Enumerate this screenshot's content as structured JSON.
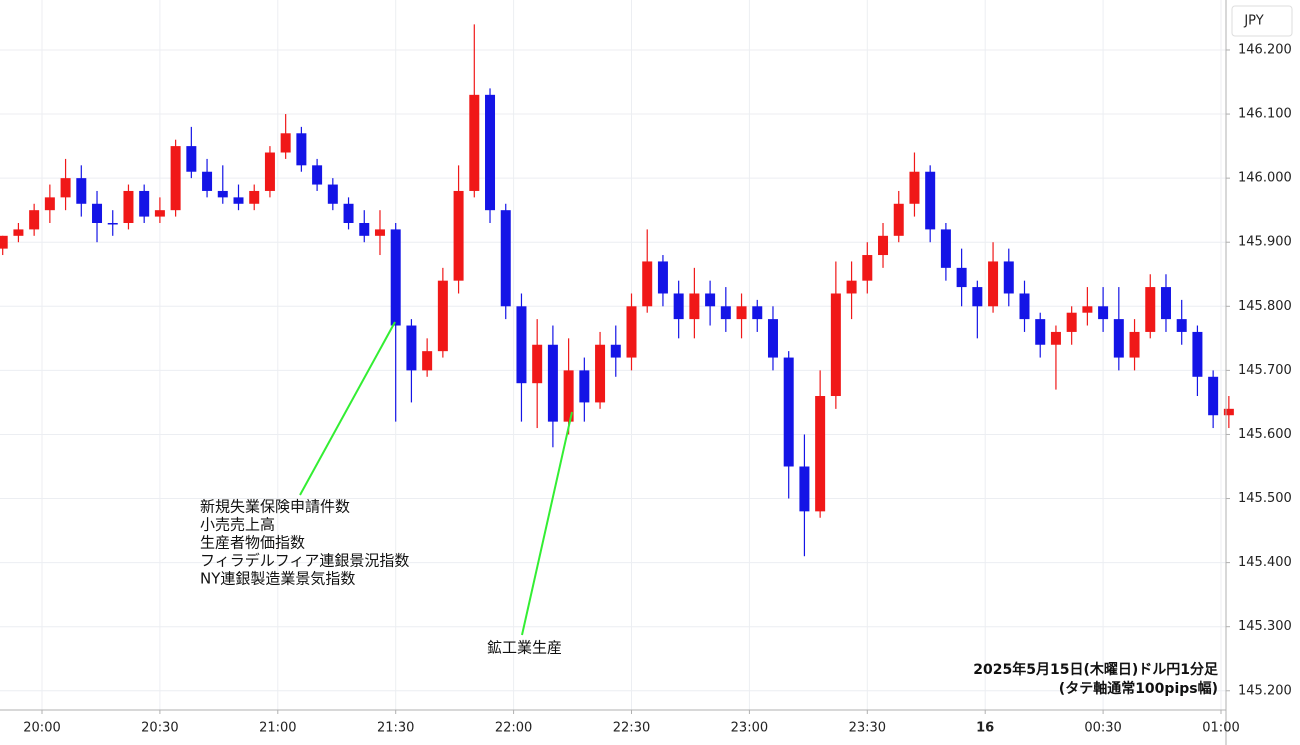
{
  "chart_data": {
    "type": "candlestick",
    "currency_label": "JPY",
    "x": [
      "19:48",
      "19:52",
      "19:56",
      "20:00",
      "20:04",
      "20:08",
      "20:12",
      "20:16",
      "20:20",
      "20:24",
      "20:28",
      "20:32",
      "20:36",
      "20:40",
      "20:44",
      "20:48",
      "20:52",
      "20:56",
      "21:00",
      "21:04",
      "21:08",
      "21:12",
      "21:16",
      "21:20",
      "21:24",
      "21:28",
      "21:32",
      "21:36",
      "21:40",
      "21:44",
      "21:48",
      "21:52",
      "21:56",
      "22:00",
      "22:04",
      "22:08",
      "22:12",
      "22:16",
      "22:20",
      "22:24",
      "22:28",
      "22:32",
      "22:36",
      "22:40",
      "22:44",
      "22:48",
      "22:52",
      "22:56",
      "23:00",
      "23:04",
      "23:08",
      "23:12",
      "23:16",
      "23:20",
      "23:24",
      "23:28",
      "23:32",
      "23:36",
      "23:40",
      "23:44",
      "23:48",
      "23:52",
      "23:56",
      "00:00",
      "00:04",
      "00:08",
      "00:12",
      "00:16",
      "00:20",
      "00:24",
      "00:28",
      "00:32",
      "00:36",
      "00:40",
      "00:44",
      "00:48",
      "00:52",
      "00:56",
      "01:00"
    ],
    "open": [
      145.89,
      145.91,
      145.92,
      145.95,
      145.97,
      146.0,
      145.96,
      145.93,
      145.93,
      145.98,
      145.94,
      145.95,
      146.05,
      146.01,
      145.98,
      145.97,
      145.96,
      145.98,
      146.04,
      146.07,
      146.02,
      145.99,
      145.96,
      145.93,
      145.91,
      145.92,
      145.77,
      145.7,
      145.73,
      145.84,
      145.98,
      146.13,
      145.95,
      145.8,
      145.68,
      145.74,
      145.62,
      145.7,
      145.65,
      145.74,
      145.72,
      145.8,
      145.87,
      145.82,
      145.78,
      145.82,
      145.8,
      145.78,
      145.8,
      145.78,
      145.72,
      145.55,
      145.48,
      145.66,
      145.82,
      145.84,
      145.88,
      145.91,
      145.96,
      146.01,
      145.92,
      145.86,
      145.83,
      145.8,
      145.87,
      145.82,
      145.78,
      145.74,
      145.76,
      145.79,
      145.8,
      145.78,
      145.72,
      145.76,
      145.83,
      145.78,
      145.76,
      145.69,
      145.63
    ],
    "high": [
      145.91,
      145.93,
      145.96,
      145.99,
      146.03,
      146.02,
      145.98,
      145.95,
      145.99,
      145.99,
      145.97,
      146.06,
      146.08,
      146.03,
      146.02,
      145.99,
      145.99,
      146.05,
      146.1,
      146.08,
      146.03,
      146.0,
      145.97,
      145.95,
      145.95,
      145.93,
      145.78,
      145.75,
      145.86,
      146.02,
      146.24,
      146.14,
      145.96,
      145.82,
      145.78,
      145.77,
      145.75,
      145.72,
      145.76,
      145.77,
      145.82,
      145.92,
      145.88,
      145.84,
      145.86,
      145.84,
      145.83,
      145.82,
      145.81,
      145.8,
      145.73,
      145.6,
      145.7,
      145.87,
      145.87,
      145.9,
      145.93,
      145.98,
      146.04,
      146.02,
      145.93,
      145.89,
      145.84,
      145.9,
      145.89,
      145.84,
      145.79,
      145.77,
      145.8,
      145.83,
      145.83,
      145.83,
      145.78,
      145.85,
      145.85,
      145.81,
      145.77,
      145.7,
      145.66
    ],
    "low": [
      145.88,
      145.9,
      145.91,
      145.93,
      145.95,
      145.94,
      145.9,
      145.91,
      145.92,
      145.93,
      145.93,
      145.94,
      146.0,
      145.97,
      145.96,
      145.95,
      145.95,
      145.97,
      146.03,
      146.01,
      145.98,
      145.95,
      145.92,
      145.9,
      145.88,
      145.62,
      145.65,
      145.69,
      145.72,
      145.82,
      145.97,
      145.93,
      145.78,
      145.62,
      145.61,
      145.58,
      145.6,
      145.62,
      145.64,
      145.69,
      145.7,
      145.79,
      145.8,
      145.75,
      145.75,
      145.77,
      145.76,
      145.75,
      145.76,
      145.7,
      145.5,
      145.41,
      145.47,
      145.64,
      145.78,
      145.82,
      145.86,
      145.9,
      145.94,
      145.9,
      145.84,
      145.8,
      145.75,
      145.79,
      145.8,
      145.76,
      145.72,
      145.67,
      145.74,
      145.77,
      145.76,
      145.7,
      145.7,
      145.75,
      145.76,
      145.74,
      145.66,
      145.61,
      145.61
    ],
    "close": [
      145.91,
      145.92,
      145.95,
      145.97,
      146.0,
      145.96,
      145.93,
      145.93,
      145.98,
      145.94,
      145.95,
      146.05,
      146.01,
      145.98,
      145.97,
      145.96,
      145.98,
      146.04,
      146.07,
      146.02,
      145.99,
      145.96,
      145.93,
      145.91,
      145.92,
      145.77,
      145.7,
      145.73,
      145.84,
      145.98,
      146.13,
      145.95,
      145.8,
      145.68,
      145.74,
      145.62,
      145.7,
      145.65,
      145.74,
      145.72,
      145.8,
      145.87,
      145.82,
      145.78,
      145.82,
      145.8,
      145.78,
      145.8,
      145.78,
      145.72,
      145.55,
      145.48,
      145.66,
      145.82,
      145.84,
      145.88,
      145.91,
      145.96,
      146.01,
      145.92,
      145.86,
      145.83,
      145.8,
      145.87,
      145.82,
      145.78,
      145.74,
      145.76,
      145.79,
      145.8,
      145.78,
      145.72,
      145.76,
      145.83,
      145.78,
      145.76,
      145.69,
      145.63,
      145.64
    ],
    "up_color": "#f01818",
    "down_color": "#1414e6",
    "ylim": [
      145.17,
      146.278
    ],
    "yticks": [
      {
        "value": 145.2,
        "label": "145.200"
      },
      {
        "value": 145.3,
        "label": "145.300"
      },
      {
        "value": 145.4,
        "label": "145.400"
      },
      {
        "value": 145.5,
        "label": "145.500"
      },
      {
        "value": 145.6,
        "label": "145.600"
      },
      {
        "value": 145.7,
        "label": "145.700"
      },
      {
        "value": 145.8,
        "label": "145.800"
      },
      {
        "value": 145.9,
        "label": "145.900"
      },
      {
        "value": 146.0,
        "label": "146.000"
      },
      {
        "value": 146.1,
        "label": "146.100"
      },
      {
        "value": 146.2,
        "label": "146.200"
      }
    ],
    "xticks": [
      "20:00",
      "20:30",
      "21:00",
      "21:30",
      "22:00",
      "22:30",
      "23:00",
      "23:30",
      {
        "value": "00:00",
        "label": "16"
      },
      "00:30",
      "01:00"
    ],
    "grid": true,
    "annotations": [
      {
        "text": [
          "新規失業保険申請件数",
          "小売売上高",
          "生産者物価指数",
          "フィラデルフィア連銀景況指数",
          "NY連銀製造業景気指数"
        ]
      },
      {
        "text": [
          "鉱工業生産"
        ]
      }
    ],
    "caption": [
      "2025年5月15日(木曜日)ドル円1分足",
      "(タテ軸通常100pips幅)"
    ]
  }
}
